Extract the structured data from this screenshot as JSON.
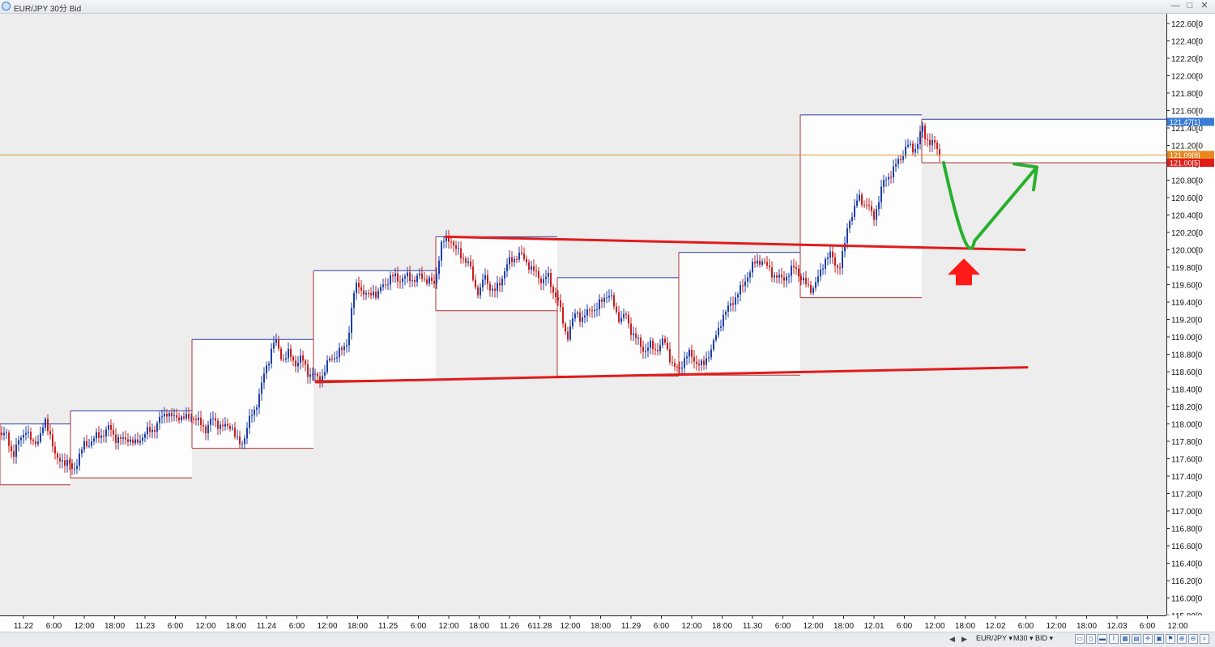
{
  "window": {
    "title": "EUR/JPY 30分 Bid",
    "min_icon": "—",
    "max_icon": "□",
    "close_icon": "✕"
  },
  "statusbar": {
    "symbol": "EUR/JPY ▾",
    "timeframe": "M30 ▾",
    "price_type": "BID ▾",
    "nav_left": "◀",
    "nav_right": "▶",
    "tool_glyphs": [
      "▭",
      "▯",
      "▬",
      "⌇",
      "▦",
      "▤",
      "✛",
      "▣",
      "⚑",
      "⊕",
      "⊖",
      "⌕"
    ]
  },
  "colors": {
    "background": "#ededed",
    "bull": "#1f3fa8",
    "bear": "#c81e1e",
    "range_top": "#2b3f9c",
    "range_bottom": "#b43232",
    "trendline": "#e21b1b",
    "current_price_line": "#d99a3c",
    "path_arrow": "#27b02e",
    "down_arrow_marker": "#ff1a1a",
    "ask_label": "#3a7bd5",
    "current_label": "#e8871e",
    "bid_label": "#e21b1b"
  },
  "chart_data": {
    "type": "candlestick",
    "symbol": "EUR/JPY",
    "timeframe": "30分",
    "ylim": [
      115.8,
      122.7
    ],
    "y_ticks": [
      "122.60[0",
      "122.40[0",
      "122.20[0",
      "122.00[0",
      "121.80[0",
      "121.60[0",
      "121.40[0",
      "121.20[0",
      "121.00[0",
      "120.80[0",
      "120.60[0",
      "120.40[0",
      "120.20[0",
      "120.00[0",
      "119.80[0",
      "119.60[0",
      "119.40[0",
      "119.20[0",
      "119.00[0",
      "118.80[0",
      "118.60[0",
      "118.40[0",
      "118.20[0",
      "118.00[0",
      "117.80[0",
      "117.60[0",
      "117.40[0",
      "117.20[0",
      "117.00[0",
      "116.80[0",
      "116.60[0",
      "116.40[0",
      "116.20[0",
      "116.00[0",
      "115.80[0"
    ],
    "x_ticks": [
      "11.22",
      "6:00",
      "12:00",
      "18:00",
      "11.23",
      "6:00",
      "12:00",
      "18:00",
      "11.24",
      "6:00",
      "12:00",
      "18:00",
      "11.25",
      "6:00",
      "12:00",
      "18:00",
      "11.26",
      "611.28",
      "12:00",
      "18:00",
      "11.29",
      "6:00",
      "12:00",
      "18:00",
      "11.30",
      "6:00",
      "12:00",
      "18:00",
      "12.01",
      "6:00",
      "12:00",
      "18:00",
      "12.02",
      "6:00",
      "12:00",
      "18:00",
      "12.03",
      "6:00",
      "12:00"
    ],
    "price_labels": [
      {
        "text": "121.47[1]",
        "value": 121.47,
        "role": "ask"
      },
      {
        "text": "121.09[8]",
        "value": 121.09,
        "role": "current"
      },
      {
        "text": "121.00[5]",
        "value": 121.0,
        "role": "bid"
      }
    ],
    "current_price": 121.09,
    "path": [
      {
        "x": 0,
        "y": 117.9
      },
      {
        "x": 8,
        "y": 117.85
      },
      {
        "x": 16,
        "y": 117.65
      },
      {
        "x": 24,
        "y": 117.8
      },
      {
        "x": 32,
        "y": 117.95
      },
      {
        "x": 40,
        "y": 117.75
      },
      {
        "x": 48,
        "y": 117.85
      },
      {
        "x": 56,
        "y": 118.0
      },
      {
        "x": 62,
        "y": 117.9
      },
      {
        "x": 70,
        "y": 117.55
      },
      {
        "x": 76,
        "y": 117.6
      },
      {
        "x": 84,
        "y": 117.55
      },
      {
        "x": 90,
        "y": 117.45
      },
      {
        "x": 96,
        "y": 117.6
      },
      {
        "x": 104,
        "y": 117.75
      },
      {
        "x": 112,
        "y": 117.8
      },
      {
        "x": 120,
        "y": 117.85
      },
      {
        "x": 128,
        "y": 117.9
      },
      {
        "x": 136,
        "y": 117.95
      },
      {
        "x": 142,
        "y": 117.85
      },
      {
        "x": 150,
        "y": 117.8
      },
      {
        "x": 158,
        "y": 117.85
      },
      {
        "x": 166,
        "y": 117.75
      },
      {
        "x": 174,
        "y": 117.85
      },
      {
        "x": 182,
        "y": 117.9
      },
      {
        "x": 190,
        "y": 117.95
      },
      {
        "x": 198,
        "y": 118.05
      },
      {
        "x": 206,
        "y": 118.15
      },
      {
        "x": 214,
        "y": 118.05
      },
      {
        "x": 222,
        "y": 118.1
      },
      {
        "x": 230,
        "y": 118.05
      },
      {
        "x": 238,
        "y": 118.1
      },
      {
        "x": 246,
        "y": 118.0
      },
      {
        "x": 254,
        "y": 117.95
      },
      {
        "x": 262,
        "y": 118.05
      },
      {
        "x": 270,
        "y": 118.0
      },
      {
        "x": 278,
        "y": 117.95
      },
      {
        "x": 286,
        "y": 118.0
      },
      {
        "x": 292,
        "y": 117.8
      },
      {
        "x": 298,
        "y": 117.75
      },
      {
        "x": 306,
        "y": 118.0
      },
      {
        "x": 314,
        "y": 118.15
      },
      {
        "x": 320,
        "y": 118.35
      },
      {
        "x": 326,
        "y": 118.55
      },
      {
        "x": 332,
        "y": 118.75
      },
      {
        "x": 337,
        "y": 118.95
      },
      {
        "x": 342,
        "y": 118.9
      },
      {
        "x": 348,
        "y": 118.75
      },
      {
        "x": 356,
        "y": 118.8
      },
      {
        "x": 364,
        "y": 118.7
      },
      {
        "x": 372,
        "y": 118.75
      },
      {
        "x": 380,
        "y": 118.6
      },
      {
        "x": 388,
        "y": 118.55
      },
      {
        "x": 394,
        "y": 118.5
      },
      {
        "x": 400,
        "y": 118.6
      },
      {
        "x": 408,
        "y": 118.75
      },
      {
        "x": 416,
        "y": 118.8
      },
      {
        "x": 424,
        "y": 118.85
      },
      {
        "x": 430,
        "y": 119.0
      },
      {
        "x": 436,
        "y": 119.45
      },
      {
        "x": 442,
        "y": 119.65
      },
      {
        "x": 448,
        "y": 119.5
      },
      {
        "x": 454,
        "y": 119.45
      },
      {
        "x": 460,
        "y": 119.55
      },
      {
        "x": 466,
        "y": 119.45
      },
      {
        "x": 472,
        "y": 119.6
      },
      {
        "x": 480,
        "y": 119.65
      },
      {
        "x": 488,
        "y": 119.7
      },
      {
        "x": 496,
        "y": 119.65
      },
      {
        "x": 504,
        "y": 119.7
      },
      {
        "x": 512,
        "y": 119.65
      },
      {
        "x": 520,
        "y": 119.7
      },
      {
        "x": 528,
        "y": 119.65
      },
      {
        "x": 536,
        "y": 119.6
      },
      {
        "x": 540,
        "y": 119.8
      },
      {
        "x": 544,
        "y": 120.05
      },
      {
        "x": 550,
        "y": 120.1
      },
      {
        "x": 556,
        "y": 120.15
      },
      {
        "x": 562,
        "y": 120.0
      },
      {
        "x": 568,
        "y": 119.95
      },
      {
        "x": 574,
        "y": 119.9
      },
      {
        "x": 580,
        "y": 119.8
      },
      {
        "x": 586,
        "y": 119.6
      },
      {
        "x": 592,
        "y": 119.5
      },
      {
        "x": 598,
        "y": 119.7
      },
      {
        "x": 604,
        "y": 119.6
      },
      {
        "x": 610,
        "y": 119.5
      },
      {
        "x": 616,
        "y": 119.6
      },
      {
        "x": 622,
        "y": 119.75
      },
      {
        "x": 628,
        "y": 119.85
      },
      {
        "x": 634,
        "y": 119.9
      },
      {
        "x": 640,
        "y": 119.95
      },
      {
        "x": 646,
        "y": 119.9
      },
      {
        "x": 652,
        "y": 119.85
      },
      {
        "x": 658,
        "y": 119.75
      },
      {
        "x": 664,
        "y": 119.7
      },
      {
        "x": 670,
        "y": 119.65
      },
      {
        "x": 676,
        "y": 119.7
      },
      {
        "x": 682,
        "y": 119.55
      },
      {
        "x": 688,
        "y": 119.45
      },
      {
        "x": 694,
        "y": 119.2
      },
      {
        "x": 700,
        "y": 119.0
      },
      {
        "x": 706,
        "y": 119.15
      },
      {
        "x": 712,
        "y": 119.3
      },
      {
        "x": 718,
        "y": 119.2
      },
      {
        "x": 724,
        "y": 119.25
      },
      {
        "x": 730,
        "y": 119.35
      },
      {
        "x": 736,
        "y": 119.3
      },
      {
        "x": 742,
        "y": 119.4
      },
      {
        "x": 748,
        "y": 119.5
      },
      {
        "x": 754,
        "y": 119.45
      },
      {
        "x": 760,
        "y": 119.3
      },
      {
        "x": 766,
        "y": 119.2
      },
      {
        "x": 772,
        "y": 119.25
      },
      {
        "x": 778,
        "y": 119.1
      },
      {
        "x": 784,
        "y": 119.0
      },
      {
        "x": 790,
        "y": 118.9
      },
      {
        "x": 796,
        "y": 118.85
      },
      {
        "x": 802,
        "y": 118.9
      },
      {
        "x": 808,
        "y": 118.85
      },
      {
        "x": 814,
        "y": 118.9
      },
      {
        "x": 820,
        "y": 118.95
      },
      {
        "x": 826,
        "y": 118.8
      },
      {
        "x": 832,
        "y": 118.65
      },
      {
        "x": 838,
        "y": 118.6
      },
      {
        "x": 844,
        "y": 118.75
      },
      {
        "x": 850,
        "y": 118.8
      },
      {
        "x": 856,
        "y": 118.75
      },
      {
        "x": 862,
        "y": 118.7
      },
      {
        "x": 868,
        "y": 118.65
      },
      {
        "x": 874,
        "y": 118.8
      },
      {
        "x": 880,
        "y": 118.9
      },
      {
        "x": 886,
        "y": 119.05
      },
      {
        "x": 892,
        "y": 119.25
      },
      {
        "x": 898,
        "y": 119.3
      },
      {
        "x": 904,
        "y": 119.4
      },
      {
        "x": 910,
        "y": 119.5
      },
      {
        "x": 916,
        "y": 119.55
      },
      {
        "x": 922,
        "y": 119.7
      },
      {
        "x": 928,
        "y": 119.8
      },
      {
        "x": 934,
        "y": 119.85
      },
      {
        "x": 940,
        "y": 119.9
      },
      {
        "x": 946,
        "y": 119.8
      },
      {
        "x": 952,
        "y": 119.75
      },
      {
        "x": 958,
        "y": 119.7
      },
      {
        "x": 964,
        "y": 119.65
      },
      {
        "x": 970,
        "y": 119.7
      },
      {
        "x": 976,
        "y": 119.75
      },
      {
        "x": 982,
        "y": 119.8
      },
      {
        "x": 988,
        "y": 119.7
      },
      {
        "x": 994,
        "y": 119.6
      },
      {
        "x": 1000,
        "y": 119.55
      },
      {
        "x": 1006,
        "y": 119.6
      },
      {
        "x": 1012,
        "y": 119.7
      },
      {
        "x": 1018,
        "y": 119.9
      },
      {
        "x": 1024,
        "y": 119.95
      },
      {
        "x": 1030,
        "y": 119.85
      },
      {
        "x": 1036,
        "y": 119.8
      },
      {
        "x": 1042,
        "y": 120.0
      },
      {
        "x": 1048,
        "y": 120.35
      },
      {
        "x": 1054,
        "y": 120.45
      },
      {
        "x": 1060,
        "y": 120.6
      },
      {
        "x": 1066,
        "y": 120.55
      },
      {
        "x": 1072,
        "y": 120.5
      },
      {
        "x": 1078,
        "y": 120.35
      },
      {
        "x": 1084,
        "y": 120.55
      },
      {
        "x": 1090,
        "y": 120.75
      },
      {
        "x": 1096,
        "y": 120.85
      },
      {
        "x": 1102,
        "y": 120.9
      },
      {
        "x": 1108,
        "y": 121.0
      },
      {
        "x": 1114,
        "y": 121.1
      },
      {
        "x": 1120,
        "y": 121.2
      },
      {
        "x": 1126,
        "y": 121.15
      },
      {
        "x": 1132,
        "y": 121.2
      },
      {
        "x": 1138,
        "y": 121.4
      },
      {
        "x": 1142,
        "y": 121.3
      },
      {
        "x": 1148,
        "y": 121.25
      },
      {
        "x": 1154,
        "y": 121.2
      },
      {
        "x": 1160,
        "y": 121.1
      }
    ],
    "range_boxes": [
      {
        "x0": 0,
        "x1": 87,
        "high": 118.0,
        "low": 117.3
      },
      {
        "x0": 87,
        "x1": 237,
        "high": 118.15,
        "low": 117.38
      },
      {
        "x0": 237,
        "x1": 387,
        "high": 118.97,
        "low": 117.72
      },
      {
        "x0": 387,
        "x1": 538,
        "high": 119.76,
        "low": 118.5
      },
      {
        "x0": 538,
        "x1": 688,
        "high": 120.15,
        "low": 119.3
      },
      {
        "x0": 688,
        "x1": 838,
        "high": 119.68,
        "low": 118.55
      },
      {
        "x0": 838,
        "x1": 988,
        "high": 119.97,
        "low": 118.56
      },
      {
        "x0": 988,
        "x1": 1138,
        "high": 121.55,
        "low": 119.45
      },
      {
        "x0": 1138,
        "x1": 1445,
        "high": 121.5,
        "low": 121.0
      }
    ],
    "trendlines": [
      {
        "x0": 550,
        "y0": 120.15,
        "x1": 1265,
        "y1": 120.0
      },
      {
        "x0": 390,
        "y0": 118.48,
        "x1": 1268,
        "y1": 118.65
      }
    ],
    "projection_path": [
      {
        "x": 1165,
        "y": 121.0
      },
      {
        "x": 1195,
        "y": 120.1
      },
      {
        "x": 1280,
        "y": 120.95
      }
    ],
    "marker": {
      "x": 1190,
      "y": 119.9
    }
  }
}
